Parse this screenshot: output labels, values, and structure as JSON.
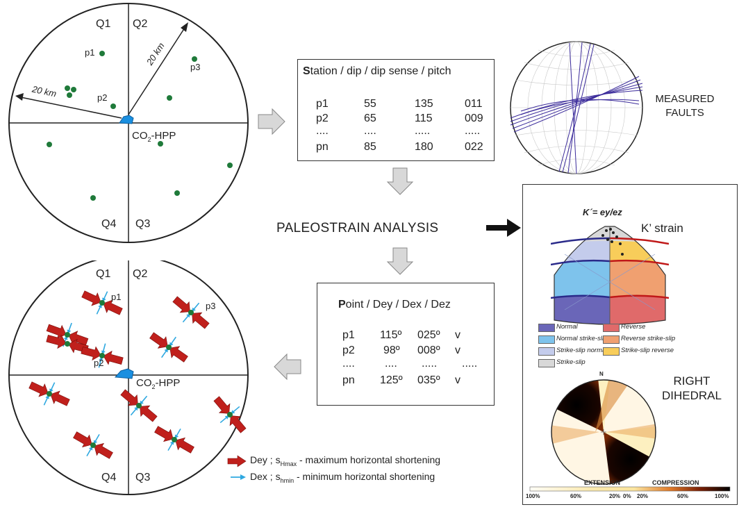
{
  "top_map": {
    "quadrants": [
      "Q1",
      "Q2",
      "Q3",
      "Q4"
    ],
    "points": [
      "p1",
      "p2",
      "p3"
    ],
    "radius_label": "20 km",
    "plant_label_main": "CO",
    "plant_label_sub": "2",
    "plant_label_end": "-HPP"
  },
  "station_table": {
    "header_lead": "S",
    "header_rest": "tation / dip / dip sense / pitch",
    "rows": [
      [
        "p1",
        "55",
        "135",
        "011"
      ],
      [
        "p2",
        "65",
        "115",
        "009"
      ],
      [
        "....",
        "....",
        ".....",
        "....."
      ],
      [
        "pn",
        "85",
        "180",
        "022"
      ]
    ]
  },
  "measured_faults": {
    "line1": "MEASURED",
    "line2": "FAULTS"
  },
  "center_title": "PALEOSTRAIN ANALYSIS",
  "point_table": {
    "header_lead": "P",
    "header_rest": "oint / Dey / Dex / Dez",
    "rows": [
      [
        "p1",
        "115º",
        "025º",
        "v"
      ],
      [
        "p2",
        "98º",
        "008º",
        "v"
      ],
      [
        "....",
        "....",
        ".....",
        "....."
      ],
      [
        "pn",
        "125º",
        "035º",
        "v"
      ]
    ]
  },
  "bottom_map": {
    "quadrants": [
      "Q1",
      "Q2",
      "Q3",
      "Q4"
    ],
    "points": [
      "p1",
      "p2",
      "p3"
    ],
    "plant_label_main": "CO",
    "plant_label_sub": "2",
    "plant_label_end": "-HPP"
  },
  "arrow_legend": {
    "red_line": "Dey ; s",
    "red_sub": "Hmax",
    "red_end": " - maximum horizontal shortening",
    "blue_line": "Dex ; s",
    "blue_sub": "hmin",
    "blue_end": " - minimum horizontal shortening"
  },
  "panel": {
    "k_title": "K´= ey/ez",
    "k_strain": "K’ strain",
    "legend": [
      {
        "label": "Normal",
        "color": "#6a66b8"
      },
      {
        "label": "Reverse",
        "color": "#e06a6a"
      },
      {
        "label": "Normal strike-slip",
        "color": "#7ec3ec"
      },
      {
        "label": "Reverse strike-slip",
        "color": "#f0a070"
      },
      {
        "label": "Strike-slip normal",
        "color": "#c4ccec"
      },
      {
        "label": "Strike-slip reverse",
        "color": "#f8cd5a"
      },
      {
        "label": "Strike-slip",
        "color": "#d8d8d8"
      }
    ],
    "right_dihedral_1": "RIGHT",
    "right_dihedral_2": "DIHEDRAL",
    "north": "N",
    "extension": "EXTENSION",
    "compression": "COMPRESSION",
    "scale_ticks": [
      "100%",
      "60%",
      "20%",
      "0%",
      "20%",
      "60%",
      "100%"
    ]
  },
  "colors": {
    "station_dot": "#1f7a3a",
    "plant": "#1a8fe0",
    "red_arrow": "#c0201c",
    "blue_arrow": "#2ea8e0",
    "fault_lines": "#3a2a9a"
  }
}
